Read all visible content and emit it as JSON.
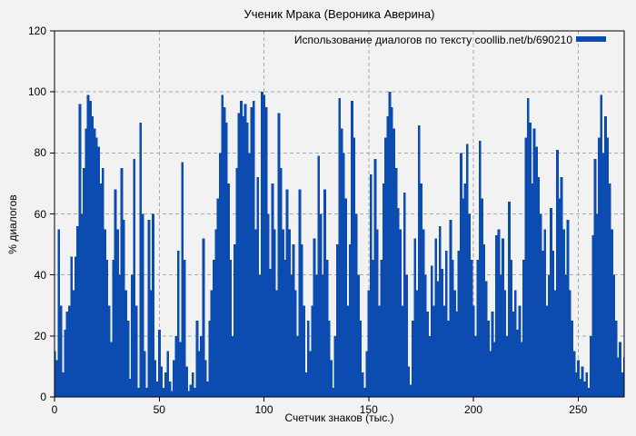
{
  "title": "Ученик Мрака (Вероника Аверина)",
  "legend": {
    "label": "Использование диалогов по тексту coollib.net/b/690210"
  },
  "colors": {
    "bar": "#0c4cb0",
    "background": "#f2f2f2",
    "grid": "#ababab",
    "axis": "#000000"
  },
  "chart_data": {
    "type": "bar",
    "title": "Ученик Мрака (Вероника Аверина)",
    "xlabel": "Счетчик знаков (тыс.)",
    "ylabel": "% диалогов",
    "legend": "Использование диалогов по тексту coollib.net/b/690210",
    "legend_position": "top-right",
    "grid": true,
    "xlim": [
      0,
      272
    ],
    "ylim": [
      0,
      120
    ],
    "xticks": [
      0,
      50,
      100,
      150,
      200,
      250
    ],
    "yticks": [
      0,
      20,
      40,
      60,
      80,
      100,
      120
    ],
    "x_start": 0,
    "x_step": 1,
    "values": [
      15,
      12,
      55,
      30,
      8,
      22,
      28,
      30,
      46,
      35,
      46,
      56,
      96,
      60,
      75,
      88,
      99,
      97,
      92,
      88,
      85,
      82,
      70,
      75,
      55,
      45,
      30,
      18,
      45,
      68,
      55,
      40,
      75,
      58,
      35,
      25,
      6,
      40,
      78,
      30,
      3,
      90,
      60,
      15,
      3,
      58,
      35,
      60,
      12,
      5,
      22,
      10,
      3,
      8,
      15,
      5,
      2,
      12,
      20,
      48,
      18,
      77,
      45,
      10,
      2,
      4,
      8,
      3,
      25,
      15,
      20,
      52,
      12,
      5,
      25,
      35,
      45,
      55,
      65,
      80,
      99,
      95,
      90,
      70,
      45,
      20,
      50,
      75,
      93,
      97,
      92,
      96,
      90,
      80,
      95,
      97,
      55,
      72,
      40,
      100,
      99,
      95,
      60,
      42,
      70,
      55,
      35,
      93,
      75,
      55,
      45,
      68,
      55,
      40,
      50,
      35,
      20,
      68,
      50,
      30,
      8,
      25,
      15,
      30,
      52,
      40,
      79,
      60,
      40,
      68,
      45,
      25,
      12,
      3,
      20,
      50,
      98,
      88,
      80,
      65,
      30,
      50,
      97,
      85,
      60,
      40,
      25,
      8,
      3,
      15,
      35,
      73,
      45,
      78,
      55,
      30,
      45,
      70,
      85,
      92,
      100,
      95,
      88,
      75,
      62,
      55,
      30,
      67,
      40,
      10,
      4,
      25,
      52,
      35,
      89,
      70,
      55,
      40,
      28,
      20,
      43,
      30,
      52,
      38,
      56,
      42,
      30,
      48,
      25,
      58,
      45,
      35,
      28,
      48,
      80,
      65,
      70,
      83,
      60,
      45,
      30,
      20,
      45,
      84,
      65,
      50,
      38,
      25,
      15,
      28,
      18,
      53,
      55,
      40,
      52,
      35,
      20,
      64,
      45,
      28,
      35,
      22,
      30,
      18,
      45,
      85,
      98,
      90,
      70,
      88,
      82,
      72,
      60,
      48,
      55,
      30,
      40,
      62,
      48,
      35,
      81,
      65,
      72,
      55,
      40,
      58,
      35,
      25,
      15,
      8,
      12,
      6,
      10,
      5,
      8,
      3,
      20,
      53,
      78,
      60,
      85,
      99,
      80,
      92,
      85,
      70,
      55,
      40,
      25,
      13,
      18,
      8,
      13
    ]
  }
}
